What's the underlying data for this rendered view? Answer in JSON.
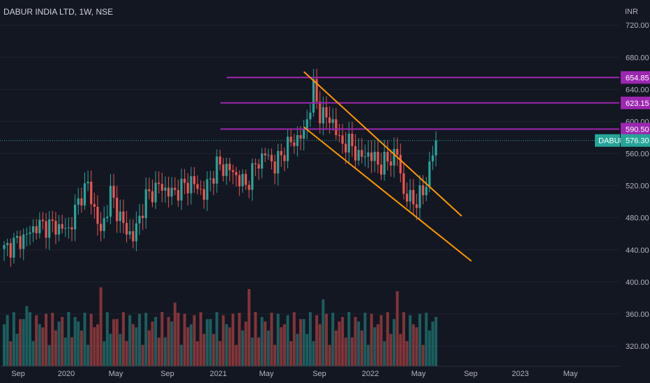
{
  "chart_data": {
    "type": "candlestick",
    "title": "DABUR INDIA LTD, 1W, NSE",
    "currency": "INR",
    "y_ticks": [
      320,
      360,
      400,
      440,
      480,
      520,
      560,
      600,
      640,
      680,
      720
    ],
    "y_tick_labels": [
      "320.00",
      "360.00",
      "400.00",
      "440.00",
      "480.00",
      "520.00",
      "560.00",
      "600.00",
      "640.00",
      "680.00",
      "720.00"
    ],
    "x_ticks": [
      "Sep",
      "2020",
      "May",
      "Sep",
      "2021",
      "May",
      "Sep",
      "2022",
      "May",
      "Sep",
      "2023",
      "May"
    ],
    "price_anchors": [
      [
        0,
        440
      ],
      [
        6,
        455
      ],
      [
        10,
        470
      ],
      [
        15,
        470
      ],
      [
        20,
        465
      ],
      [
        24,
        510
      ],
      [
        26,
        520
      ],
      [
        30,
        460
      ],
      [
        33,
        510
      ],
      [
        37,
        470
      ],
      [
        40,
        455
      ],
      [
        44,
        505
      ],
      [
        48,
        520
      ],
      [
        52,
        510
      ],
      [
        58,
        525
      ],
      [
        62,
        510
      ],
      [
        66,
        545
      ],
      [
        70,
        540
      ],
      [
        75,
        520
      ],
      [
        78,
        545
      ],
      [
        81,
        560
      ],
      [
        84,
        545
      ],
      [
        88,
        570
      ],
      [
        93,
        585
      ],
      [
        96,
        640
      ],
      [
        98,
        610
      ],
      [
        102,
        600
      ],
      [
        104,
        575
      ],
      [
        108,
        570
      ],
      [
        110,
        555
      ],
      [
        113,
        560
      ],
      [
        117,
        545
      ],
      [
        120,
        555
      ],
      [
        122,
        560
      ],
      [
        124,
        510
      ],
      [
        127,
        500
      ],
      [
        130,
        510
      ],
      [
        133,
        560
      ],
      [
        134,
        576.3
      ]
    ],
    "resistance_levels": [
      {
        "label": "654.85",
        "value": 654.85
      },
      {
        "label": "623.15",
        "value": 623.15
      },
      {
        "label": "590.50",
        "value": 590.5
      }
    ],
    "last_price": {
      "symbol": "DABUR",
      "label": "576.30",
      "value": 576.3
    },
    "channel_upper": {
      "from": [
        93,
        662
      ],
      "to": [
        142,
        482
      ]
    },
    "channel_lower": {
      "from": [
        93,
        593
      ],
      "to": [
        145,
        426
      ]
    },
    "colors": {
      "up": "#26a69a",
      "down": "#ef5350",
      "level": "#9c27b0",
      "channel": "#ff9800",
      "background": "#131722"
    }
  }
}
